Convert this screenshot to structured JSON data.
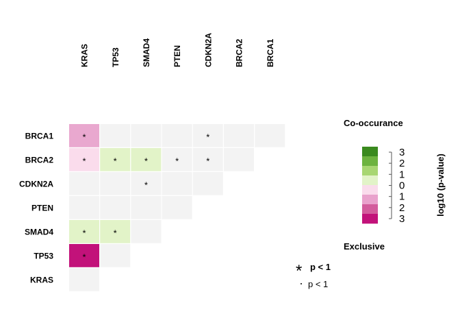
{
  "chart_data": {
    "type": "heatmap",
    "columns": [
      "KRAS",
      "TP53",
      "SMAD4",
      "PTEN",
      "CDKN2A",
      "BRCA2",
      "BRCA1"
    ],
    "rows": [
      "BRCA1",
      "BRCA2",
      "CDKN2A",
      "PTEN",
      "SMAD4",
      "TP53",
      "KRAS"
    ],
    "cells": [
      {
        "row": "BRCA1",
        "col": "KRAS",
        "value": -1,
        "sig": true
      },
      {
        "row": "BRCA1",
        "col": "TP53",
        "value": 0,
        "sig": false
      },
      {
        "row": "BRCA1",
        "col": "SMAD4",
        "value": 0,
        "sig": false
      },
      {
        "row": "BRCA1",
        "col": "PTEN",
        "value": 0,
        "sig": false
      },
      {
        "row": "BRCA1",
        "col": "CDKN2A",
        "value": 0,
        "sig": true
      },
      {
        "row": "BRCA1",
        "col": "BRCA2",
        "value": 0,
        "sig": false
      },
      {
        "row": "BRCA1",
        "col": "BRCA1",
        "value": 0,
        "sig": false
      },
      {
        "row": "BRCA2",
        "col": "KRAS",
        "value": -0.5,
        "sig": true
      },
      {
        "row": "BRCA2",
        "col": "TP53",
        "value": 0.5,
        "sig": true
      },
      {
        "row": "BRCA2",
        "col": "SMAD4",
        "value": 0.5,
        "sig": true
      },
      {
        "row": "BRCA2",
        "col": "PTEN",
        "value": 0,
        "sig": true
      },
      {
        "row": "BRCA2",
        "col": "CDKN2A",
        "value": 0,
        "sig": true
      },
      {
        "row": "BRCA2",
        "col": "BRCA2",
        "value": 0,
        "sig": false
      },
      {
        "row": "CDKN2A",
        "col": "KRAS",
        "value": 0,
        "sig": false
      },
      {
        "row": "CDKN2A",
        "col": "TP53",
        "value": 0,
        "sig": false
      },
      {
        "row": "CDKN2A",
        "col": "SMAD4",
        "value": 0,
        "sig": true
      },
      {
        "row": "CDKN2A",
        "col": "PTEN",
        "value": 0,
        "sig": false
      },
      {
        "row": "CDKN2A",
        "col": "CDKN2A",
        "value": 0,
        "sig": false
      },
      {
        "row": "PTEN",
        "col": "KRAS",
        "value": 0,
        "sig": false
      },
      {
        "row": "PTEN",
        "col": "TP53",
        "value": 0,
        "sig": false
      },
      {
        "row": "PTEN",
        "col": "SMAD4",
        "value": 0,
        "sig": false
      },
      {
        "row": "PTEN",
        "col": "PTEN",
        "value": 0,
        "sig": false
      },
      {
        "row": "SMAD4",
        "col": "KRAS",
        "value": 0.5,
        "sig": true
      },
      {
        "row": "SMAD4",
        "col": "TP53",
        "value": 0.5,
        "sig": true
      },
      {
        "row": "SMAD4",
        "col": "SMAD4",
        "value": 0,
        "sig": false
      },
      {
        "row": "TP53",
        "col": "KRAS",
        "value": -3,
        "sig": true
      },
      {
        "row": "TP53",
        "col": "TP53",
        "value": 0,
        "sig": false
      },
      {
        "row": "KRAS",
        "col": "KRAS",
        "value": 0,
        "sig": false
      }
    ],
    "legend": {
      "top_label": "Co-occurance",
      "bottom_label": "Exclusive",
      "axis_label": "log10 (p-value)",
      "ticks": [
        "3",
        "2",
        "1",
        "0",
        "1",
        "2",
        "3"
      ],
      "colors": [
        "#3a8a1e",
        "#6db33f",
        "#a8d672",
        "#e2f3c8",
        "#fadcec",
        "#e9a2cc",
        "#d35c9c",
        "#c2127a"
      ]
    },
    "significance": {
      "star_label": "p < 1",
      "dot_label": "p < 1"
    },
    "colors": {
      "neutral": "#f3f3f3",
      "co_light": "#e2f3c8",
      "ex_light": "#fadcec",
      "ex_mid": "#e9a8cf",
      "ex_strong": "#c2127a"
    }
  }
}
